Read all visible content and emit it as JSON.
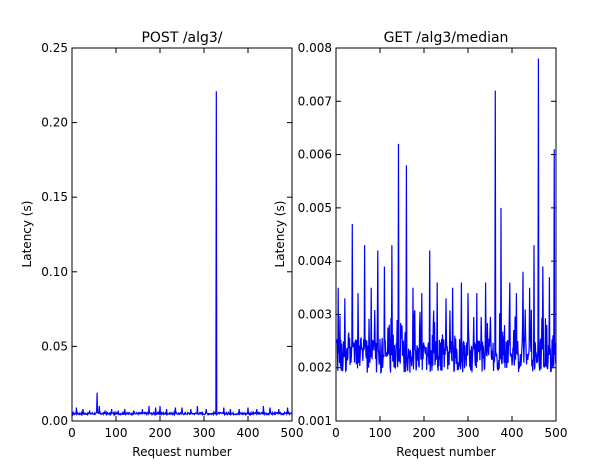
{
  "chart_data": [
    {
      "type": "line",
      "title": "POST /alg3/",
      "xlabel": "Request number",
      "ylabel": "Latency (s)",
      "xlim": [
        0,
        500
      ],
      "ylim": [
        0,
        0.25
      ],
      "xticks": [
        0,
        100,
        200,
        300,
        400,
        500
      ],
      "xtick_labels": [
        "0",
        "100",
        "200",
        "300",
        "400",
        "500"
      ],
      "yticks": [
        0,
        0.05,
        0.1,
        0.15,
        0.2,
        0.25
      ],
      "ytick_labels": [
        "0.00",
        "0.05",
        "0.10",
        "0.15",
        "0.20",
        "0.25"
      ],
      "grid": false,
      "series": [
        {
          "color": "#0000ff",
          "baseline": 0.005,
          "spikes": [
            [
              10,
              0.009
            ],
            [
              25,
              0.008
            ],
            [
              40,
              0.007
            ],
            [
              57,
              0.019
            ],
            [
              62,
              0.01
            ],
            [
              75,
              0.007
            ],
            [
              90,
              0.008
            ],
            [
              105,
              0.007
            ],
            [
              120,
              0.008
            ],
            [
              140,
              0.007
            ],
            [
              160,
              0.008
            ],
            [
              175,
              0.01
            ],
            [
              190,
              0.009
            ],
            [
              200,
              0.01
            ],
            [
              215,
              0.008
            ],
            [
              235,
              0.009
            ],
            [
              250,
              0.009
            ],
            [
              270,
              0.008
            ],
            [
              285,
              0.01
            ],
            [
              305,
              0.008
            ],
            [
              328,
              0.221
            ],
            [
              345,
              0.009
            ],
            [
              360,
              0.008
            ],
            [
              380,
              0.008
            ],
            [
              400,
              0.009
            ],
            [
              420,
              0.008
            ],
            [
              435,
              0.01
            ],
            [
              450,
              0.009
            ],
            [
              470,
              0.008
            ],
            [
              490,
              0.009
            ]
          ]
        }
      ]
    },
    {
      "type": "line",
      "title": "GET /alg3/median",
      "xlabel": "Request number",
      "ylabel": "Latency (s)",
      "xlim": [
        0,
        500
      ],
      "ylim": [
        0.001,
        0.008
      ],
      "xticks": [
        0,
        100,
        200,
        300,
        400,
        500
      ],
      "xtick_labels": [
        "0",
        "100",
        "200",
        "300",
        "400",
        "500"
      ],
      "yticks": [
        0.001,
        0.002,
        0.003,
        0.004,
        0.005,
        0.006,
        0.007,
        0.008
      ],
      "ytick_labels": [
        "0.001",
        "0.002",
        "0.003",
        "0.004",
        "0.005",
        "0.006",
        "0.007",
        "0.008"
      ],
      "grid": false,
      "series": [
        {
          "color": "#0000ff",
          "noise_low": 0.0019,
          "noise_high": 0.0031,
          "spikes": [
            [
              5,
              0.0035
            ],
            [
              20,
              0.0033
            ],
            [
              37,
              0.0047
            ],
            [
              50,
              0.0034
            ],
            [
              65,
              0.0043
            ],
            [
              80,
              0.0035
            ],
            [
              95,
              0.0042
            ],
            [
              110,
              0.0039
            ],
            [
              127,
              0.0043
            ],
            [
              142,
              0.0062
            ],
            [
              160,
              0.0058
            ],
            [
              175,
              0.0035
            ],
            [
              195,
              0.0034
            ],
            [
              213,
              0.0042
            ],
            [
              230,
              0.0036
            ],
            [
              250,
              0.0033
            ],
            [
              265,
              0.0035
            ],
            [
              285,
              0.0036
            ],
            [
              300,
              0.0034
            ],
            [
              320,
              0.0034
            ],
            [
              340,
              0.0036
            ],
            [
              362,
              0.0072
            ],
            [
              375,
              0.005
            ],
            [
              395,
              0.0036
            ],
            [
              410,
              0.0034
            ],
            [
              425,
              0.0038
            ],
            [
              440,
              0.0035
            ],
            [
              450,
              0.0043
            ],
            [
              460,
              0.0078
            ],
            [
              470,
              0.0039
            ],
            [
              485,
              0.0037
            ],
            [
              496,
              0.0061
            ]
          ]
        }
      ]
    }
  ]
}
